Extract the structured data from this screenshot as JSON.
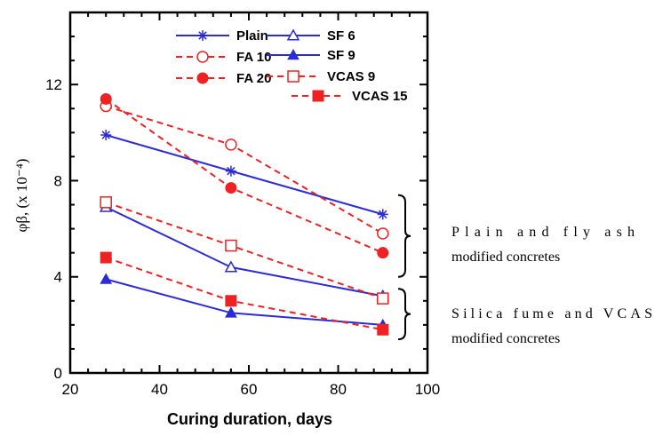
{
  "chart_data": {
    "type": "line",
    "xlabel": "Curing duration, days",
    "ylabel": "φβ, (x 10⁻⁴)",
    "xlim": [
      20,
      100
    ],
    "ylim": [
      0,
      15
    ],
    "x_ticks": [
      20,
      40,
      60,
      80,
      100
    ],
    "y_ticks": [
      0,
      4,
      8,
      12
    ],
    "grid": false,
    "legend_position": "top-right inside",
    "series": [
      {
        "name": "Plain",
        "x": [
          28,
          56,
          90
        ],
        "y": [
          9.9,
          8.4,
          6.6
        ],
        "color": "#2b2bd8",
        "line": "solid",
        "marker": "asterisk"
      },
      {
        "name": "FA 10",
        "x": [
          28,
          56,
          90
        ],
        "y": [
          11.1,
          9.5,
          5.8
        ],
        "color": "#ee2222",
        "line": "dashed",
        "marker": "circle-open"
      },
      {
        "name": "FA 20",
        "x": [
          28,
          56,
          90
        ],
        "y": [
          11.4,
          7.7,
          5.0
        ],
        "color": "#ee2222",
        "line": "dashed",
        "marker": "circle-filled"
      },
      {
        "name": "SF 6",
        "x": [
          28,
          56,
          90
        ],
        "y": [
          6.9,
          4.4,
          3.2
        ],
        "color": "#2b2bd8",
        "line": "solid",
        "marker": "triangle-open"
      },
      {
        "name": "SF 9",
        "x": [
          28,
          56,
          90
        ],
        "y": [
          3.9,
          2.5,
          2.0
        ],
        "color": "#2b2bd8",
        "line": "solid",
        "marker": "triangle-filled"
      },
      {
        "name": "VCAS 9",
        "x": [
          28,
          56,
          90
        ],
        "y": [
          7.1,
          5.3,
          3.1
        ],
        "color": "#ee2222",
        "line": "dashed",
        "marker": "square-open"
      },
      {
        "name": "VCAS 15",
        "x": [
          28,
          56,
          90
        ],
        "y": [
          4.8,
          3.0,
          1.8
        ],
        "color": "#ee2222",
        "line": "dashed",
        "marker": "square-filled"
      }
    ],
    "annotations": [
      {
        "lines": [
          "Plain and fly ash",
          "modified concretes"
        ]
      },
      {
        "lines": [
          "Silica fume and VCAS",
          "modified concretes"
        ]
      }
    ]
  }
}
